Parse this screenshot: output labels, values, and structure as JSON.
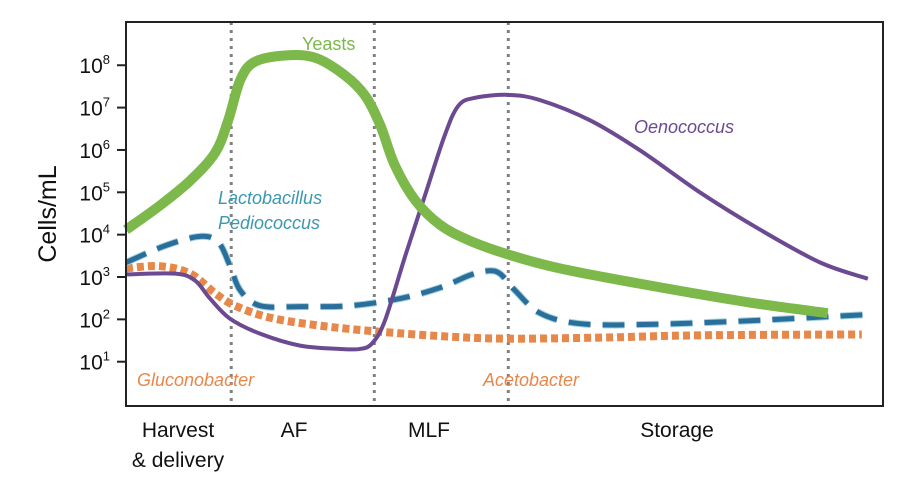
{
  "chart_data": {
    "type": "line",
    "title": "",
    "xlabel": "",
    "ylabel": "Cells/mL",
    "yscale": "log",
    "ylim": [
      0.9,
      1050000000.0
    ],
    "xlim": [
      0,
      100
    ],
    "grid": false,
    "legend": "none (inline series labels)",
    "yticks": [
      {
        "base": "10",
        "exp": "1",
        "value": 10
      },
      {
        "base": "10",
        "exp": "2",
        "value": 100
      },
      {
        "base": "10",
        "exp": "3",
        "value": 1000
      },
      {
        "base": "10",
        "exp": "4",
        "value": 10000
      },
      {
        "base": "10",
        "exp": "5",
        "value": 100000
      },
      {
        "base": "10",
        "exp": "6",
        "value": 1000000
      },
      {
        "base": "10",
        "exp": "7",
        "value": 10000000
      },
      {
        "base": "10",
        "exp": "8",
        "value": 100000000
      }
    ],
    "phase_boundaries": [
      13.9,
      32.8,
      50.5
    ],
    "phases": [
      {
        "line1": "Harvest",
        "line2": "& delivery"
      },
      {
        "line1": "AF",
        "line2": ""
      },
      {
        "line1": "MLF",
        "line2": ""
      },
      {
        "line1": "Storage",
        "line2": ""
      }
    ],
    "series": [
      {
        "name": "Yeasts",
        "color": "#7cb84a",
        "style": "solid-thick",
        "x": [
          0,
          4.5,
          8.5,
          11.8,
          13.5,
          15.1,
          17.0,
          21.0,
          25.0,
          28.9,
          31.6,
          33.6,
          35.5,
          38.2,
          41.5,
          45.4,
          50.5,
          57.3,
          69.2,
          82.4,
          92.7
        ],
        "y": [
          13000.0,
          49000.0,
          190000.0,
          870000.0,
          5000000.0,
          45000000.0,
          120000000.0,
          170000000.0,
          150000000.0,
          58000000.0,
          19000000.0,
          3800000.0,
          440000.0,
          65000.0,
          17000.0,
          7200.0,
          3400.0,
          1600.0,
          630,
          250,
          140
        ]
      },
      {
        "name": "Oenococcus",
        "color": "#6b4a91",
        "style": "solid",
        "x": [
          0,
          6.5,
          9.1,
          11.1,
          13.7,
          17.7,
          23.0,
          28.3,
          30.9,
          32.5,
          34.2,
          36.9,
          39.5,
          42.1,
          43.9,
          46.1,
          50.5,
          54.7,
          61.3,
          67.9,
          75.8,
          83.8,
          91.7,
          98.0
        ],
        "y": [
          1150,
          1200,
          830,
          310,
          105,
          46,
          24,
          20,
          20,
          27,
          93,
          3200,
          85000.0,
          2200000.0,
          11000000.0,
          17000000.0,
          20000000.0,
          15000000.0,
          5000000.0,
          980000.0,
          100000.0,
          13000.0,
          2200,
          910
        ]
      },
      {
        "name": "Lactobacillus Pediococcus",
        "name_line1": "Lactobacillus",
        "name_line2": "Pediococcus",
        "color": "#2a6e9c",
        "label_color": "#3a98b0",
        "style": "dashed",
        "x": [
          0,
          5.2,
          9.8,
          12.2,
          13.7,
          15.1,
          17.7,
          23.0,
          29.6,
          36.2,
          41.5,
          45.4,
          47.8,
          49.4,
          51.4,
          54.7,
          60.0,
          69.2,
          82.4,
          98.0
        ],
        "y": [
          2200,
          5500,
          9100,
          6600,
          1900,
          480,
          210,
          200,
          210,
          310,
          560,
          1100,
          1400,
          1200,
          480,
          140,
          79,
          76,
          93,
          130
        ]
      },
      {
        "name": "Gluconobacter / Acetobacter",
        "name_left": "Gluconobacter",
        "name_right": "Acetobacter",
        "color": "#e8874a",
        "style": "dotted",
        "x": [
          0,
          4.5,
          8.5,
          11.8,
          14.4,
          19.0,
          25.6,
          33.6,
          42.8,
          50.5,
          62.6,
          75.8,
          97.2
        ],
        "y": [
          1600,
          1800,
          1200,
          410,
          210,
          110,
          71,
          51,
          39,
          35,
          37,
          42,
          44
        ]
      }
    ]
  }
}
